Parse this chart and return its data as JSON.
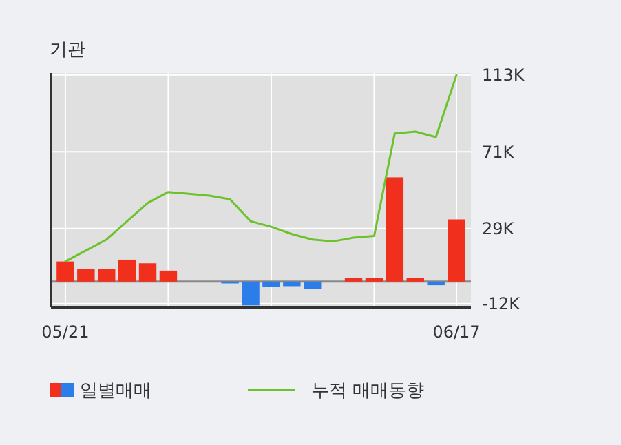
{
  "chart_data": {
    "type": "bar",
    "title": "기관",
    "categories": [
      "05/21",
      null,
      null,
      null,
      null,
      null,
      null,
      null,
      null,
      null,
      null,
      null,
      null,
      null,
      null,
      null,
      null,
      null,
      null,
      "06/17"
    ],
    "series": [
      {
        "name": "일별매매",
        "colors": [
          "#f0301c",
          "#f0301c",
          "#f0301c",
          "#f0301c",
          "#f0301c",
          "#f0301c",
          "#f0301c",
          "#f0301c",
          "#2b7de9",
          "#2b7de9",
          "#2b7de9",
          "#2b7de9",
          "#2b7de9",
          "#f0301c",
          "#f0301c",
          "#f0301c",
          "#f0301c",
          "#f0301c",
          "#2b7de9",
          "#f0301c"
        ],
        "values": [
          11,
          7,
          7,
          12,
          10,
          6,
          0,
          0,
          -1,
          -13,
          -3,
          -2.5,
          -4,
          0,
          2,
          2,
          57,
          2,
          -2,
          34
        ]
      },
      {
        "name": "누적 매매동향",
        "type": "line",
        "color": "#6cc22c",
        "values": [
          11,
          17,
          23,
          33,
          43,
          49,
          48,
          47,
          45,
          33,
          30,
          26,
          23,
          22,
          24,
          25,
          81,
          82,
          79,
          113
        ]
      }
    ],
    "ylim": [
      -14,
      114
    ],
    "yticks": [
      {
        "value": -12,
        "label": "-12K"
      },
      {
        "value": 29,
        "label": "29K"
      },
      {
        "value": 71,
        "label": "71K"
      },
      {
        "value": 113,
        "label": "113K"
      }
    ],
    "grid": true,
    "legend": "bottom"
  }
}
